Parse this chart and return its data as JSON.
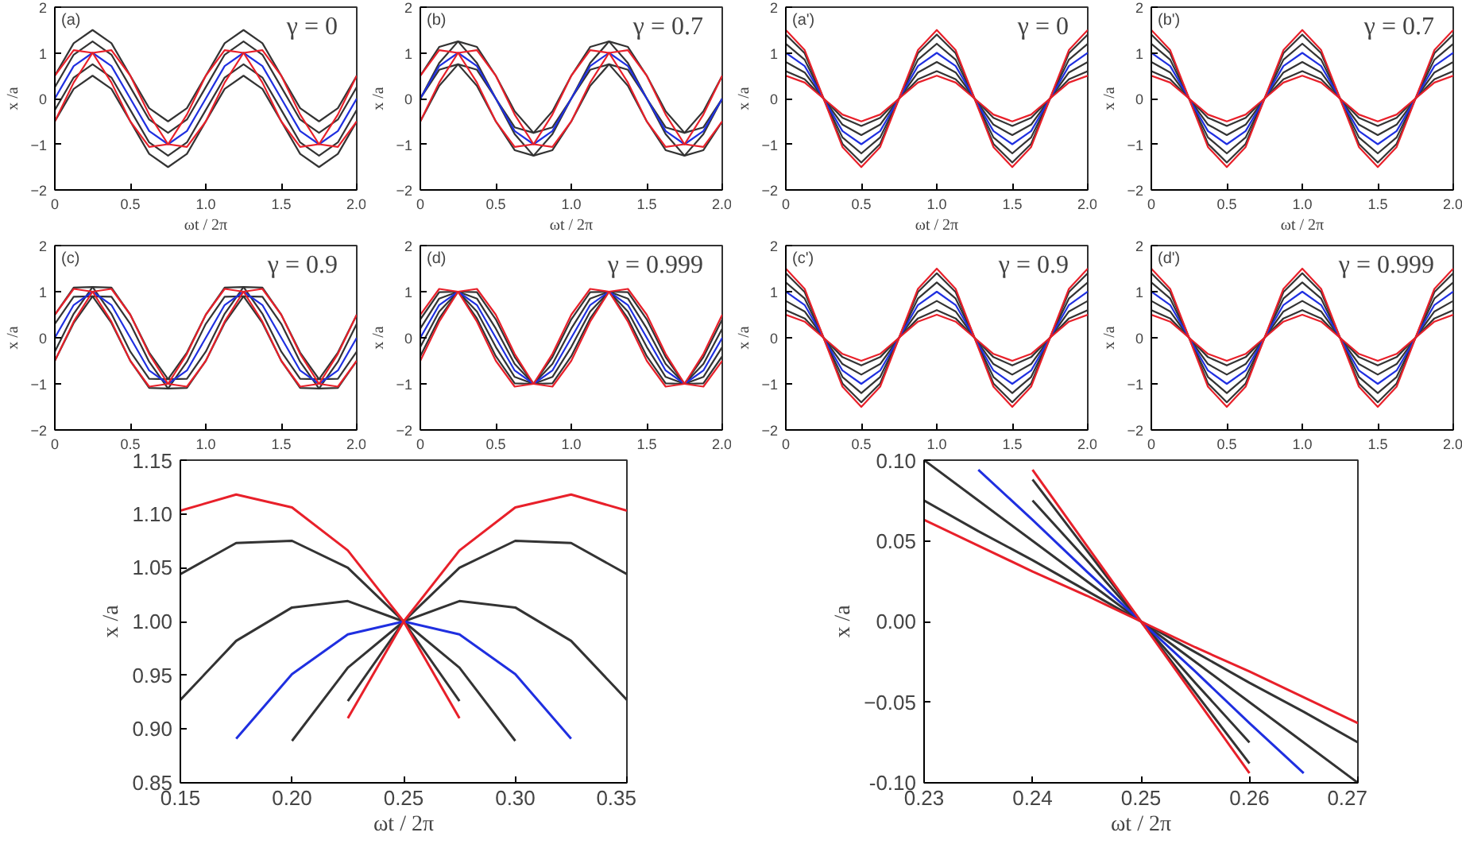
{
  "chart_data": [
    {
      "type": "line",
      "xlabel": "ωt / 2π",
      "ylabel": "x /a",
      "annotations": [
        "(a)",
        "γ = 0"
      ],
      "xlim": [
        0,
        2
      ],
      "ylim": [
        -2,
        2
      ],
      "xticks": [
        0.0,
        {
          "value": 0.5,
          "label": "0.5"
        },
        {
          "value": 1,
          "label": "1.0"
        },
        {
          "value": 1.5,
          "label": "1.5"
        },
        {
          "value": 2,
          "label": "2.0"
        }
      ],
      "yticks": [
        -2,
        -1,
        0,
        1,
        2
      ],
      "x": [
        0,
        0.125,
        0.25,
        0.375,
        0.5,
        0.625,
        0.75,
        0.875,
        1,
        1.125,
        1.25,
        1.375,
        1.5,
        1.625,
        1.75,
        1.875,
        2
      ],
      "series": [
        {
          "color": "#333333",
          "values": [
            -0.5,
            0.21,
            0.5,
            0.21,
            -0.5,
            -1.21,
            -1.5,
            -1.21,
            -0.5,
            0.21,
            0.5,
            0.21,
            -0.5,
            -1.21,
            -1.5,
            -1.21,
            -0.5
          ]
        },
        {
          "color": "#333333",
          "values": [
            -0.25,
            0.46,
            0.75,
            0.46,
            -0.25,
            -0.96,
            -1.25,
            -0.96,
            -0.25,
            0.46,
            0.75,
            0.46,
            -0.25,
            -0.96,
            -1.25,
            -0.96,
            -0.25
          ]
        },
        {
          "color": "#333333",
          "values": [
            0.25,
            0.96,
            1.25,
            0.96,
            0.25,
            -0.46,
            -0.75,
            -0.46,
            0.25,
            0.96,
            1.25,
            0.96,
            0.25,
            -0.46,
            -0.75,
            -0.46,
            0.25
          ]
        },
        {
          "color": "#333333",
          "values": [
            0.5,
            1.21,
            1.5,
            1.21,
            0.5,
            -0.21,
            -0.5,
            -0.21,
            0.5,
            1.21,
            1.5,
            1.21,
            0.5,
            -0.21,
            -0.5,
            -0.21,
            0.5
          ]
        },
        {
          "color": "#1f2fe0",
          "values": [
            0,
            0.71,
            1,
            0.71,
            0,
            -0.71,
            -1,
            -0.71,
            0,
            0.71,
            1,
            0.71,
            0,
            -0.71,
            -1,
            -0.71,
            0
          ]
        },
        {
          "color": "#e8202a",
          "values": [
            0.5,
            1.06,
            1,
            0.35,
            -0.5,
            -1.06,
            -1,
            -0.35,
            0.5,
            1.06,
            1,
            0.35,
            -0.5,
            -1.06,
            -1,
            -0.35,
            0.5
          ]
        },
        {
          "color": "#e8202a",
          "values": [
            -0.5,
            0.35,
            1,
            1.06,
            0.5,
            -0.35,
            -1,
            -1.06,
            -0.5,
            0.35,
            1,
            1.06,
            0.5,
            -0.35,
            -1,
            -1.06,
            -0.5
          ]
        }
      ]
    },
    {
      "type": "line",
      "xlabel": "ωt / 2π",
      "ylabel": "x /a",
      "annotations": [
        "(b)",
        "γ = 0.7"
      ],
      "xlim": [
        0,
        2
      ],
      "ylim": [
        -2,
        2
      ],
      "xticks": [
        0.0,
        {
          "value": 0.5,
          "label": "0.5"
        },
        {
          "value": 1,
          "label": "1.0"
        },
        {
          "value": 1.5,
          "label": "1.5"
        },
        {
          "value": 2,
          "label": "2.0"
        }
      ],
      "yticks": [
        -2,
        -1,
        0,
        1,
        2
      ],
      "x": [
        0,
        0.125,
        0.25,
        0.375,
        0.5,
        0.625,
        0.75,
        0.875,
        1,
        1.125,
        1.25,
        1.375,
        1.5,
        1.625,
        1.75,
        1.875,
        2
      ],
      "series": [
        {
          "color": "#333333",
          "values": [
            0.5,
            1.13,
            1.25,
            0.78,
            0,
            -0.63,
            -0.75,
            -0.28,
            0.5,
            1.13,
            1.25,
            0.78,
            0,
            -0.63,
            -0.75,
            -0.28,
            0.5
          ]
        },
        {
          "color": "#333333",
          "values": [
            0,
            0.78,
            1.25,
            1.13,
            0.5,
            -0.28,
            -0.75,
            -0.63,
            0,
            0.78,
            1.25,
            1.13,
            0.5,
            -0.28,
            -0.75,
            -0.63,
            0
          ]
        },
        {
          "color": "#333333",
          "values": [
            0,
            0.63,
            0.75,
            0.28,
            -0.5,
            -1.13,
            -1.25,
            -0.78,
            0,
            0.63,
            0.75,
            0.28,
            -0.5,
            -1.13,
            -1.25,
            -0.78,
            0
          ]
        },
        {
          "color": "#333333",
          "values": [
            -0.5,
            0.28,
            0.75,
            0.63,
            0,
            -0.78,
            -1.25,
            -1.13,
            -0.5,
            0.28,
            0.75,
            0.63,
            0,
            -0.78,
            -1.25,
            -1.13,
            -0.5
          ]
        },
        {
          "color": "#1f2fe0",
          "values": [
            0,
            0.71,
            1,
            0.71,
            0,
            -0.71,
            -1,
            -0.71,
            0,
            0.71,
            1,
            0.71,
            0,
            -0.71,
            -1,
            -0.71,
            0
          ]
        },
        {
          "color": "#e8202a",
          "values": [
            0.5,
            1.06,
            1,
            0.35,
            -0.5,
            -1.06,
            -1,
            -0.35,
            0.5,
            1.06,
            1,
            0.35,
            -0.5,
            -1.06,
            -1,
            -0.35,
            0.5
          ]
        },
        {
          "color": "#e8202a",
          "values": [
            -0.5,
            0.35,
            1,
            1.06,
            0.5,
            -0.35,
            -1,
            -1.06,
            -0.5,
            0.35,
            1,
            1.06,
            0.5,
            -0.35,
            -1,
            -1.06,
            -0.5
          ]
        }
      ]
    },
    {
      "type": "line",
      "xlabel": "ωt / 2π",
      "ylabel": "x /a",
      "annotations": [
        "(a')",
        "γ = 0"
      ],
      "xlim": [
        0,
        2
      ],
      "ylim": [
        -2,
        2
      ],
      "xticks": [
        0.0,
        {
          "value": 0.5,
          "label": "0.5"
        },
        {
          "value": 1,
          "label": "1.0"
        },
        {
          "value": 1.5,
          "label": "1.5"
        },
        {
          "value": 2,
          "label": "2.0"
        }
      ],
      "yticks": [
        -2,
        -1,
        0,
        1,
        2
      ],
      "x": [
        0,
        0.125,
        0.25,
        0.375,
        0.5,
        0.625,
        0.75,
        0.875,
        1,
        1.125,
        1.25,
        1.375,
        1.5,
        1.625,
        1.75,
        1.875,
        2
      ],
      "series": [
        {
          "color": "#333333",
          "values": [
            0.6,
            0.42,
            0,
            -0.42,
            -0.6,
            -0.42,
            0,
            0.42,
            0.6,
            0.42,
            0,
            -0.42,
            -0.6,
            -0.42,
            0,
            0.42,
            0.6
          ]
        },
        {
          "color": "#333333",
          "values": [
            0.8,
            0.57,
            0,
            -0.57,
            -0.8,
            -0.57,
            0,
            0.57,
            0.8,
            0.57,
            0,
            -0.57,
            -0.8,
            -0.57,
            0,
            0.57,
            0.8
          ]
        },
        {
          "color": "#333333",
          "values": [
            1.2,
            0.85,
            0,
            -0.85,
            -1.2,
            -0.85,
            0,
            0.85,
            1.2,
            0.85,
            0,
            -0.85,
            -1.2,
            -0.85,
            0,
            0.85,
            1.2
          ]
        },
        {
          "color": "#333333",
          "values": [
            1.4,
            0.99,
            0,
            -0.99,
            -1.4,
            -0.99,
            0,
            0.99,
            1.4,
            0.99,
            0,
            -0.99,
            -1.4,
            -0.99,
            0,
            0.99,
            1.4
          ]
        },
        {
          "color": "#1f2fe0",
          "values": [
            1,
            0.71,
            0,
            -0.71,
            -1,
            -0.71,
            0,
            0.71,
            1,
            0.71,
            0,
            -0.71,
            -1,
            -0.71,
            0,
            0.71,
            1
          ]
        },
        {
          "color": "#e8202a",
          "values": [
            0.5,
            0.35,
            0,
            -0.35,
            -0.5,
            -0.35,
            0,
            0.35,
            0.5,
            0.35,
            0,
            -0.35,
            -0.5,
            -0.35,
            0,
            0.35,
            0.5
          ]
        },
        {
          "color": "#e8202a",
          "values": [
            1.5,
            1.06,
            0,
            -1.06,
            -1.5,
            -1.06,
            0,
            1.06,
            1.5,
            1.06,
            0,
            -1.06,
            -1.5,
            -1.06,
            0,
            1.06,
            1.5
          ]
        }
      ]
    },
    {
      "type": "line",
      "xlabel": "ωt / 2π",
      "ylabel": "x /a",
      "annotations": [
        "(b')",
        "γ = 0.7"
      ],
      "xlim": [
        0,
        2
      ],
      "ylim": [
        -2,
        2
      ],
      "xticks": [
        0.0,
        {
          "value": 0.5,
          "label": "0.5"
        },
        {
          "value": 1,
          "label": "1.0"
        },
        {
          "value": 1.5,
          "label": "1.5"
        },
        {
          "value": 2,
          "label": "2.0"
        }
      ],
      "yticks": [
        -2,
        -1,
        0,
        1,
        2
      ],
      "x": [
        0,
        0.125,
        0.25,
        0.375,
        0.5,
        0.625,
        0.75,
        0.875,
        1,
        1.125,
        1.25,
        1.375,
        1.5,
        1.625,
        1.75,
        1.875,
        2
      ],
      "series": [
        {
          "color": "#333333",
          "values": [
            0.6,
            0.42,
            0,
            -0.42,
            -0.6,
            -0.42,
            0,
            0.42,
            0.6,
            0.42,
            0,
            -0.42,
            -0.6,
            -0.42,
            0,
            0.42,
            0.6
          ]
        },
        {
          "color": "#333333",
          "values": [
            0.8,
            0.57,
            0,
            -0.57,
            -0.8,
            -0.57,
            0,
            0.57,
            0.8,
            0.57,
            0,
            -0.57,
            -0.8,
            -0.57,
            0,
            0.57,
            0.8
          ]
        },
        {
          "color": "#333333",
          "values": [
            1.2,
            0.85,
            0,
            -0.85,
            -1.2,
            -0.85,
            0,
            0.85,
            1.2,
            0.85,
            0,
            -0.85,
            -1.2,
            -0.85,
            0,
            0.85,
            1.2
          ]
        },
        {
          "color": "#333333",
          "values": [
            1.4,
            0.99,
            0,
            -0.99,
            -1.4,
            -0.99,
            0,
            0.99,
            1.4,
            0.99,
            0,
            -0.99,
            -1.4,
            -0.99,
            0,
            0.99,
            1.4
          ]
        },
        {
          "color": "#1f2fe0",
          "values": [
            1,
            0.71,
            0,
            -0.71,
            -1,
            -0.71,
            0,
            0.71,
            1,
            0.71,
            0,
            -0.71,
            -1,
            -0.71,
            0,
            0.71,
            1
          ]
        },
        {
          "color": "#e8202a",
          "values": [
            0.5,
            0.35,
            0,
            -0.35,
            -0.5,
            -0.35,
            0,
            0.35,
            0.5,
            0.35,
            0,
            -0.35,
            -0.5,
            -0.35,
            0,
            0.35,
            0.5
          ]
        },
        {
          "color": "#e8202a",
          "values": [
            1.5,
            1.06,
            0,
            -1.06,
            -1.5,
            -1.06,
            0,
            1.06,
            1.5,
            1.06,
            0,
            -1.06,
            -1.5,
            -1.06,
            0,
            1.06,
            1.5
          ]
        }
      ]
    },
    {
      "type": "line",
      "ylabel": "x /a",
      "annotations": [
        "(c)",
        "γ = 0.9"
      ],
      "xlim": [
        0,
        2
      ],
      "ylim": [
        -2,
        2
      ],
      "xticks": [
        0.0,
        {
          "value": 0.5,
          "label": "0.5"
        },
        {
          "value": 1,
          "label": "1.0"
        },
        {
          "value": 1.5,
          "label": "1.5"
        },
        {
          "value": 2,
          "label": "2.0"
        }
      ],
      "yticks": [
        -2,
        -1,
        0,
        1,
        2
      ],
      "x": [
        0,
        0.125,
        0.25,
        0.375,
        0.5,
        0.625,
        0.75,
        0.875,
        1,
        1.125,
        1.25,
        1.375,
        1.5,
        1.625,
        1.75,
        1.875,
        2
      ],
      "series": [
        {
          "color": "#333333",
          "values": [
            0.5,
            1.09,
            1.1,
            0.52,
            -0.3,
            -0.89,
            -0.9,
            -0.32,
            0.5,
            1.09,
            1.1,
            0.52,
            -0.3,
            -0.89,
            -0.9,
            -0.32,
            0.5
          ]
        },
        {
          "color": "#333333",
          "values": [
            -0.3,
            0.52,
            1.1,
            1.09,
            0.5,
            -0.32,
            -0.9,
            -0.89,
            -0.3,
            0.52,
            1.1,
            1.09,
            0.5,
            -0.32,
            -0.9,
            -0.89,
            -0.3
          ]
        },
        {
          "color": "#333333",
          "values": [
            0.3,
            0.89,
            0.9,
            0.32,
            -0.5,
            -1.09,
            -1.1,
            -0.52,
            0.3,
            0.89,
            0.9,
            0.32,
            -0.5,
            -1.09,
            -1.1,
            -0.52,
            0.3
          ]
        },
        {
          "color": "#333333",
          "values": [
            -0.5,
            0.32,
            0.9,
            0.89,
            0.3,
            -0.52,
            -1.1,
            -1.09,
            -0.5,
            0.32,
            0.9,
            0.89,
            0.3,
            -0.52,
            -1.1,
            -1.09,
            -0.5
          ]
        },
        {
          "color": "#1f2fe0",
          "values": [
            0,
            0.71,
            1,
            0.71,
            0,
            -0.71,
            -1,
            -0.71,
            0,
            0.71,
            1,
            0.71,
            0,
            -0.71,
            -1,
            -0.71,
            0
          ]
        },
        {
          "color": "#e8202a",
          "values": [
            0.5,
            1.06,
            1,
            0.35,
            -0.5,
            -1.06,
            -1,
            -0.35,
            0.5,
            1.06,
            1,
            0.35,
            -0.5,
            -1.06,
            -1,
            -0.35,
            0.5
          ]
        },
        {
          "color": "#e8202a",
          "values": [
            -0.5,
            0.35,
            1,
            1.06,
            0.5,
            -0.35,
            -1,
            -1.06,
            -0.5,
            0.35,
            1,
            1.06,
            0.5,
            -0.35,
            -1,
            -1.06,
            -0.5
          ]
        }
      ]
    },
    {
      "type": "line",
      "ylabel": "x /a",
      "annotations": [
        "(d)",
        "γ = 0.999"
      ],
      "xlim": [
        0,
        2
      ],
      "ylim": [
        -2,
        2
      ],
      "xticks": [
        0.0,
        {
          "value": 0.5,
          "label": "0.5"
        },
        {
          "value": 1,
          "label": "1.0"
        },
        {
          "value": 1.5,
          "label": "1.5"
        },
        {
          "value": 2,
          "label": "2.0"
        }
      ],
      "yticks": [
        -2,
        -1,
        0,
        1,
        2
      ],
      "x": [
        0,
        0.125,
        0.25,
        0.375,
        0.5,
        0.625,
        0.75,
        0.875,
        1,
        1.125,
        1.25,
        1.375,
        1.5,
        1.625,
        1.75,
        1.875,
        2
      ],
      "series": [
        {
          "color": "#333333",
          "values": [
            0.4,
            0.99,
            1,
            0.42,
            -0.4,
            -0.99,
            -1,
            -0.42,
            0.4,
            0.99,
            1,
            0.42,
            -0.4,
            -0.99,
            -1,
            -0.42,
            0.4
          ]
        },
        {
          "color": "#333333",
          "values": [
            -0.4,
            0.42,
            1,
            0.99,
            0.4,
            -0.42,
            -1,
            -0.99,
            -0.4,
            0.42,
            1,
            0.99,
            0.4,
            -0.42,
            -1,
            -0.99,
            -0.4
          ]
        },
        {
          "color": "#333333",
          "values": [
            0.2,
            0.85,
            1,
            0.57,
            -0.2,
            -0.85,
            -1,
            -0.57,
            0.2,
            0.85,
            1,
            0.57,
            -0.2,
            -0.85,
            -1,
            -0.57,
            0.2
          ]
        },
        {
          "color": "#333333",
          "values": [
            -0.2,
            0.57,
            1,
            0.85,
            0.2,
            -0.57,
            -1,
            -0.85,
            -0.2,
            0.57,
            1,
            0.85,
            0.2,
            -0.57,
            -1,
            -0.85,
            -0.2
          ]
        },
        {
          "color": "#1f2fe0",
          "values": [
            0,
            0.71,
            1,
            0.71,
            0,
            -0.71,
            -1,
            -0.71,
            0,
            0.71,
            1,
            0.71,
            0,
            -0.71,
            -1,
            -0.71,
            0
          ]
        },
        {
          "color": "#e8202a",
          "values": [
            0.5,
            1.06,
            1,
            0.35,
            -0.5,
            -1.06,
            -1,
            -0.35,
            0.5,
            1.06,
            1,
            0.35,
            -0.5,
            -1.06,
            -1,
            -0.35,
            0.5
          ]
        },
        {
          "color": "#e8202a",
          "values": [
            -0.5,
            0.35,
            1,
            1.06,
            0.5,
            -0.35,
            -1,
            -1.06,
            -0.5,
            0.35,
            1,
            1.06,
            0.5,
            -0.35,
            -1,
            -1.06,
            -0.5
          ]
        }
      ]
    },
    {
      "type": "line",
      "ylabel": "x /a",
      "annotations": [
        "(c')",
        "γ = 0.9"
      ],
      "xlim": [
        0,
        2
      ],
      "ylim": [
        -2,
        2
      ],
      "xticks": [
        0.0,
        {
          "value": 0.5,
          "label": "0.5"
        },
        {
          "value": 1,
          "label": "1.0"
        },
        {
          "value": 1.5,
          "label": "1.5"
        },
        {
          "value": 2,
          "label": "2.0"
        }
      ],
      "yticks": [
        -2,
        -1,
        0,
        1,
        2
      ],
      "x": [
        0,
        0.125,
        0.25,
        0.375,
        0.5,
        0.625,
        0.75,
        0.875,
        1,
        1.125,
        1.25,
        1.375,
        1.5,
        1.625,
        1.75,
        1.875,
        2
      ],
      "series": [
        {
          "color": "#333333",
          "values": [
            0.6,
            0.42,
            0,
            -0.42,
            -0.6,
            -0.42,
            0,
            0.42,
            0.6,
            0.42,
            0,
            -0.42,
            -0.6,
            -0.42,
            0,
            0.42,
            0.6
          ]
        },
        {
          "color": "#333333",
          "values": [
            0.8,
            0.57,
            0,
            -0.57,
            -0.8,
            -0.57,
            0,
            0.57,
            0.8,
            0.57,
            0,
            -0.57,
            -0.8,
            -0.57,
            0,
            0.57,
            0.8
          ]
        },
        {
          "color": "#333333",
          "values": [
            1.2,
            0.85,
            0,
            -0.85,
            -1.2,
            -0.85,
            0,
            0.85,
            1.2,
            0.85,
            0,
            -0.85,
            -1.2,
            -0.85,
            0,
            0.85,
            1.2
          ]
        },
        {
          "color": "#333333",
          "values": [
            1.4,
            0.99,
            0,
            -0.99,
            -1.4,
            -0.99,
            0,
            0.99,
            1.4,
            0.99,
            0,
            -0.99,
            -1.4,
            -0.99,
            0,
            0.99,
            1.4
          ]
        },
        {
          "color": "#1f2fe0",
          "values": [
            1,
            0.71,
            0,
            -0.71,
            -1,
            -0.71,
            0,
            0.71,
            1,
            0.71,
            0,
            -0.71,
            -1,
            -0.71,
            0,
            0.71,
            1
          ]
        },
        {
          "color": "#e8202a",
          "values": [
            0.5,
            0.35,
            0,
            -0.35,
            -0.5,
            -0.35,
            0,
            0.35,
            0.5,
            0.35,
            0,
            -0.35,
            -0.5,
            -0.35,
            0,
            0.35,
            0.5
          ]
        },
        {
          "color": "#e8202a",
          "values": [
            1.5,
            1.06,
            0,
            -1.06,
            -1.5,
            -1.06,
            0,
            1.06,
            1.5,
            1.06,
            0,
            -1.06,
            -1.5,
            -1.06,
            0,
            1.06,
            1.5
          ]
        }
      ]
    },
    {
      "type": "line",
      "ylabel": "x /a",
      "annotations": [
        "(d')",
        "γ = 0.999"
      ],
      "xlim": [
        0,
        2
      ],
      "ylim": [
        -2,
        2
      ],
      "xticks": [
        0.0,
        {
          "value": 0.5,
          "label": "0.5"
        },
        {
          "value": 1,
          "label": "1.0"
        },
        {
          "value": 1.5,
          "label": "1.5"
        },
        {
          "value": 2,
          "label": "2.0"
        }
      ],
      "yticks": [
        -2,
        -1,
        0,
        1,
        2
      ],
      "x": [
        0,
        0.125,
        0.25,
        0.375,
        0.5,
        0.625,
        0.75,
        0.875,
        1,
        1.125,
        1.25,
        1.375,
        1.5,
        1.625,
        1.75,
        1.875,
        2
      ],
      "series": [
        {
          "color": "#333333",
          "values": [
            0.6,
            0.42,
            0,
            -0.42,
            -0.6,
            -0.42,
            0,
            0.42,
            0.6,
            0.42,
            0,
            -0.42,
            -0.6,
            -0.42,
            0,
            0.42,
            0.6
          ]
        },
        {
          "color": "#333333",
          "values": [
            0.8,
            0.57,
            0,
            -0.57,
            -0.8,
            -0.57,
            0,
            0.57,
            0.8,
            0.57,
            0,
            -0.57,
            -0.8,
            -0.57,
            0,
            0.57,
            0.8
          ]
        },
        {
          "color": "#333333",
          "values": [
            1.2,
            0.85,
            0,
            -0.85,
            -1.2,
            -0.85,
            0,
            0.85,
            1.2,
            0.85,
            0,
            -0.85,
            -1.2,
            -0.85,
            0,
            0.85,
            1.2
          ]
        },
        {
          "color": "#333333",
          "values": [
            1.4,
            0.99,
            0,
            -0.99,
            -1.4,
            -0.99,
            0,
            0.99,
            1.4,
            0.99,
            0,
            -0.99,
            -1.4,
            -0.99,
            0,
            0.99,
            1.4
          ]
        },
        {
          "color": "#1f2fe0",
          "values": [
            1,
            0.71,
            0,
            -0.71,
            -1,
            -0.71,
            0,
            0.71,
            1,
            0.71,
            0,
            -0.71,
            -1,
            -0.71,
            0,
            0.71,
            1
          ]
        },
        {
          "color": "#e8202a",
          "values": [
            0.5,
            0.35,
            0,
            -0.35,
            -0.5,
            -0.35,
            0,
            0.35,
            0.5,
            0.35,
            0,
            -0.35,
            -0.5,
            -0.35,
            0,
            0.35,
            0.5
          ]
        },
        {
          "color": "#e8202a",
          "values": [
            1.5,
            1.06,
            0,
            -1.06,
            -1.5,
            -1.06,
            0,
            1.06,
            1.5,
            1.06,
            0,
            -1.06,
            -1.5,
            -1.06,
            0,
            1.06,
            1.5
          ]
        }
      ]
    },
    {
      "type": "line",
      "xlabel": "ωt / 2π",
      "ylabel": "x /a",
      "xlim": [
        0.15,
        0.35
      ],
      "ylim": [
        0.85,
        1.15
      ],
      "xticks": [
        0.15,
        {
          "value": 0.2,
          "label": "0.20"
        },
        0.25,
        {
          "value": 0.3,
          "label": "0.30"
        },
        0.35
      ],
      "yticks": [
        0.85,
        {
          "value": 0.9,
          "label": "0.90"
        },
        0.95,
        {
          "value": 1,
          "label": "1.00"
        },
        1.05,
        {
          "value": 1.1,
          "label": "1.10"
        },
        1.15
      ],
      "x": [
        0.15,
        0.175,
        0.2,
        0.225,
        0.25,
        0.275,
        0.3,
        0.325,
        0.35
      ],
      "series": [
        {
          "color": "#333333",
          "values": [
            1.044,
            1.073,
            1.075,
            1.05,
            1,
            0.926,
            null,
            null,
            null
          ]
        },
        {
          "color": "#333333",
          "values": [
            null,
            null,
            null,
            0.926,
            1,
            1.05,
            1.075,
            1.073,
            1.044
          ]
        },
        {
          "color": "#333333",
          "values": [
            0.927,
            0.982,
            1.013,
            1.019,
            1,
            0.957,
            0.889,
            null,
            null
          ]
        },
        {
          "color": "#333333",
          "values": [
            null,
            null,
            0.889,
            0.957,
            1,
            1.019,
            1.013,
            0.982,
            0.927
          ]
        },
        {
          "color": "#1f2fe0",
          "values": [
            null,
            0.891,
            0.951,
            0.988,
            1,
            0.988,
            0.951,
            0.891,
            null
          ]
        },
        {
          "color": "#e8202a",
          "values": [
            1.103,
            1.118,
            1.106,
            1.066,
            1,
            0.91,
            null,
            null,
            null
          ]
        },
        {
          "color": "#e8202a",
          "values": [
            null,
            null,
            null,
            0.91,
            1,
            1.066,
            1.106,
            1.118,
            1.103
          ]
        }
      ]
    },
    {
      "type": "line",
      "xlabel": "ωt / 2π",
      "ylabel": "x /a",
      "xlim": [
        0.23,
        0.27
      ],
      "ylim": [
        -0.1,
        0.1
      ],
      "xticks": [
        0.23,
        0.24,
        0.25,
        0.26,
        0.27
      ],
      "yticks": [
        {
          "value": -0.1,
          "label": "-0.10"
        },
        -0.05,
        {
          "value": 0,
          "label": "0.00"
        },
        0.05,
        {
          "value": 0.1,
          "label": "0.10"
        }
      ],
      "x": [
        0.23,
        0.235,
        0.24,
        0.245,
        0.25,
        0.255,
        0.26,
        0.265,
        0.27
      ],
      "series": [
        {
          "color": "#333333",
          "values": [
            0.075,
            0.056,
            0.038,
            0.019,
            0,
            -0.019,
            -0.038,
            -0.056,
            -0.075
          ]
        },
        {
          "color": "#333333",
          "values": [
            0.1,
            0.075,
            0.05,
            0.025,
            0,
            -0.025,
            -0.05,
            -0.075,
            -0.1
          ]
        },
        {
          "color": "#333333",
          "values": [
            null,
            null,
            0.075,
            0.038,
            0,
            -0.038,
            -0.075,
            null,
            null
          ]
        },
        {
          "color": "#333333",
          "values": [
            null,
            null,
            0.088,
            0.044,
            0,
            -0.044,
            -0.088,
            null,
            null
          ]
        },
        {
          "color": "#1f2fe0",
          "values": [
            null,
            0.094,
            0.063,
            0.031,
            0,
            -0.031,
            -0.063,
            -0.094,
            null
          ]
        },
        {
          "color": "#e8202a",
          "values": [
            0.063,
            0.047,
            0.031,
            0.016,
            0,
            -0.016,
            -0.031,
            -0.047,
            -0.063
          ]
        },
        {
          "color": "#e8202a",
          "values": [
            null,
            null,
            0.094,
            0.047,
            0,
            -0.047,
            -0.094,
            null,
            null
          ]
        }
      ]
    }
  ]
}
